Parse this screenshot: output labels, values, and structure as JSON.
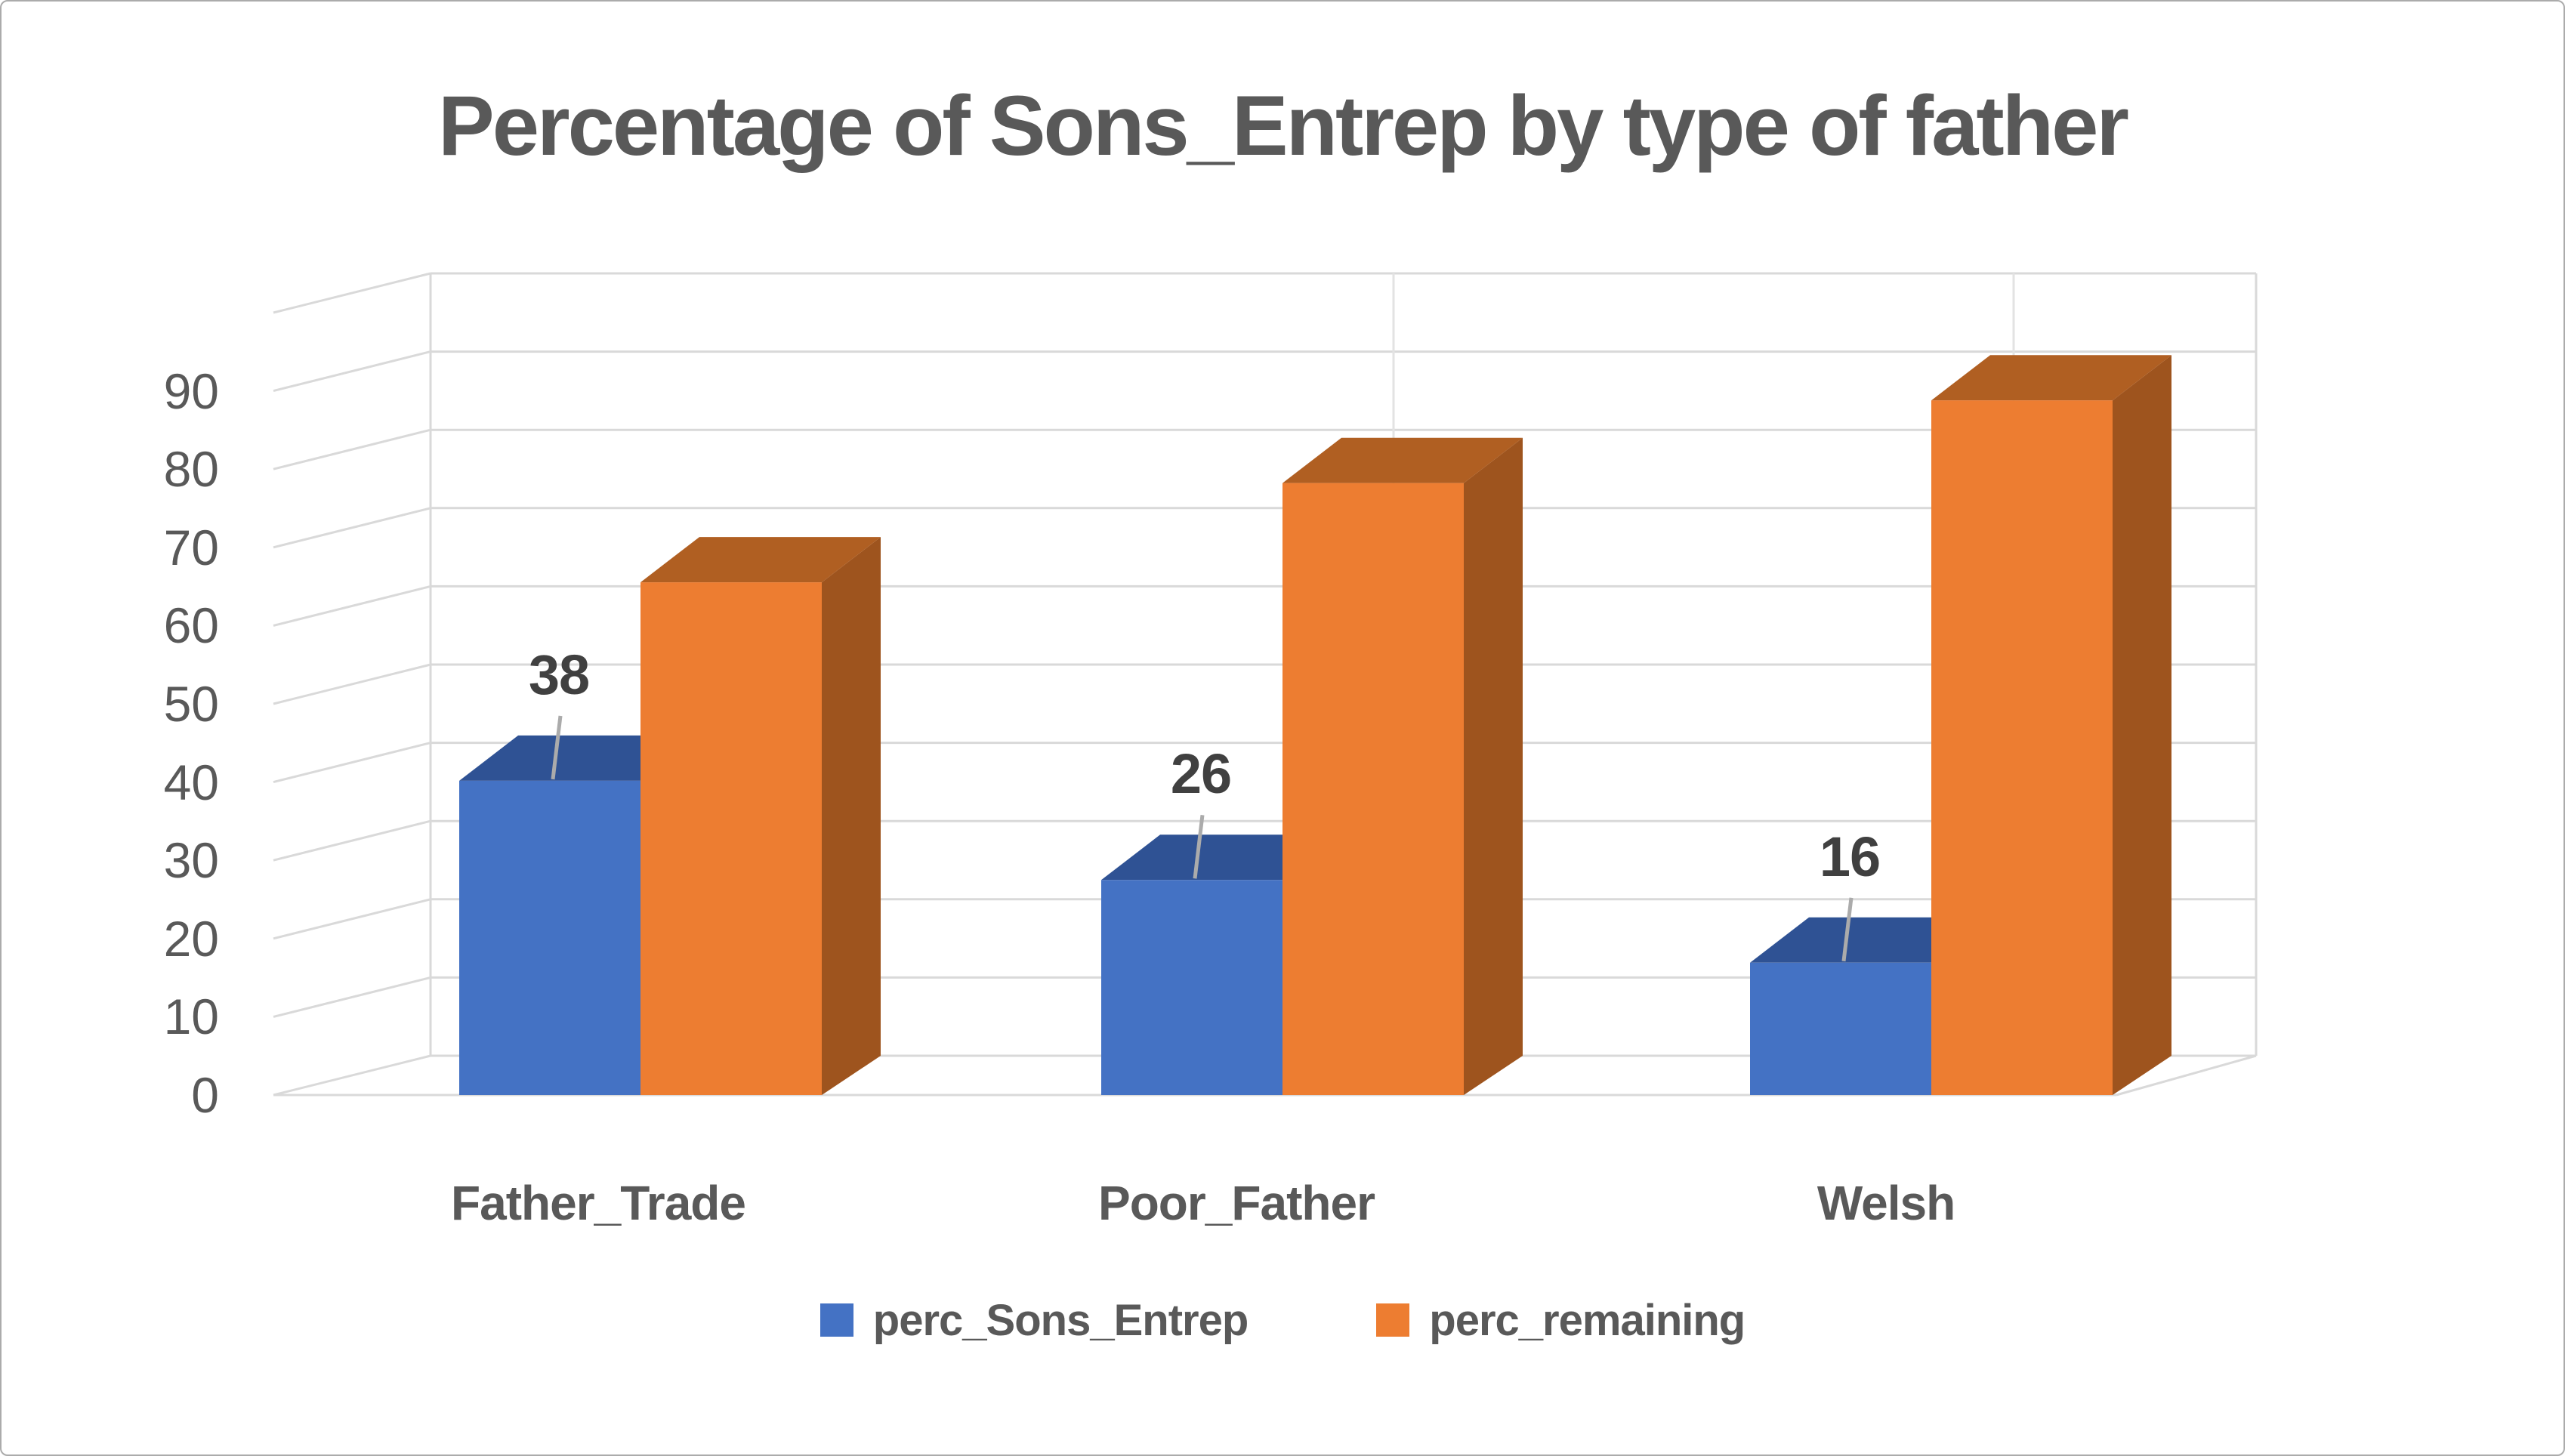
{
  "frame": {
    "background": "#ffffff",
    "border_color": "#ababab"
  },
  "title": {
    "text": "Percentage of Sons_Entrep by type of father",
    "color": "#595959"
  },
  "chart_data": {
    "type": "bar",
    "subtype": "3d-clustered-column",
    "title": "Percentage of Sons_Entrep by type of father",
    "categories": [
      "Father_Trade",
      "Poor_Father",
      "Welsh"
    ],
    "series": [
      {
        "name": "perc_Sons_Entrep",
        "color": "#4472C4",
        "values": [
          38,
          26,
          16
        ]
      },
      {
        "name": "perc_remaining",
        "color": "#ED7D31",
        "values": [
          62,
          74,
          84
        ]
      }
    ],
    "data_labels": {
      "series": "perc_Sons_Entrep",
      "values": [
        "38",
        "26",
        "16"
      ]
    },
    "xlabel": "",
    "ylabel": "",
    "ylim": [
      0,
      90
    ],
    "ytick_step": 10,
    "yticks": [
      "0",
      "10",
      "20",
      "30",
      "40",
      "50",
      "60",
      "70",
      "80",
      "90"
    ],
    "grid": true,
    "legend_position": "bottom"
  },
  "y_axis": {
    "tick_labels": [
      "0",
      "10",
      "20",
      "30",
      "40",
      "50",
      "60",
      "70",
      "80",
      "90"
    ],
    "color": "#595959"
  },
  "legend": {
    "items": [
      {
        "label": "perc_Sons_Entrep",
        "color": "#4472C4"
      },
      {
        "label": "perc_remaining",
        "color": "#ED7D31"
      }
    ],
    "text_color": "#595959"
  },
  "styles": {
    "bar_faces": {
      "perc_Sons_Entrep": {
        "front": "#4472C4",
        "top": "#2F5294",
        "side": "#2A4A85"
      },
      "perc_remaining": {
        "front": "#ED7D31",
        "top": "#B05F22",
        "side": "#9E541E"
      }
    },
    "gridline_color": "#D9D9D9",
    "wall_edge_color": "#D9D9D9",
    "separator_color": "#E3E3E3",
    "leader_line_color": "#ABABAB",
    "data_label_color": "#404040"
  }
}
